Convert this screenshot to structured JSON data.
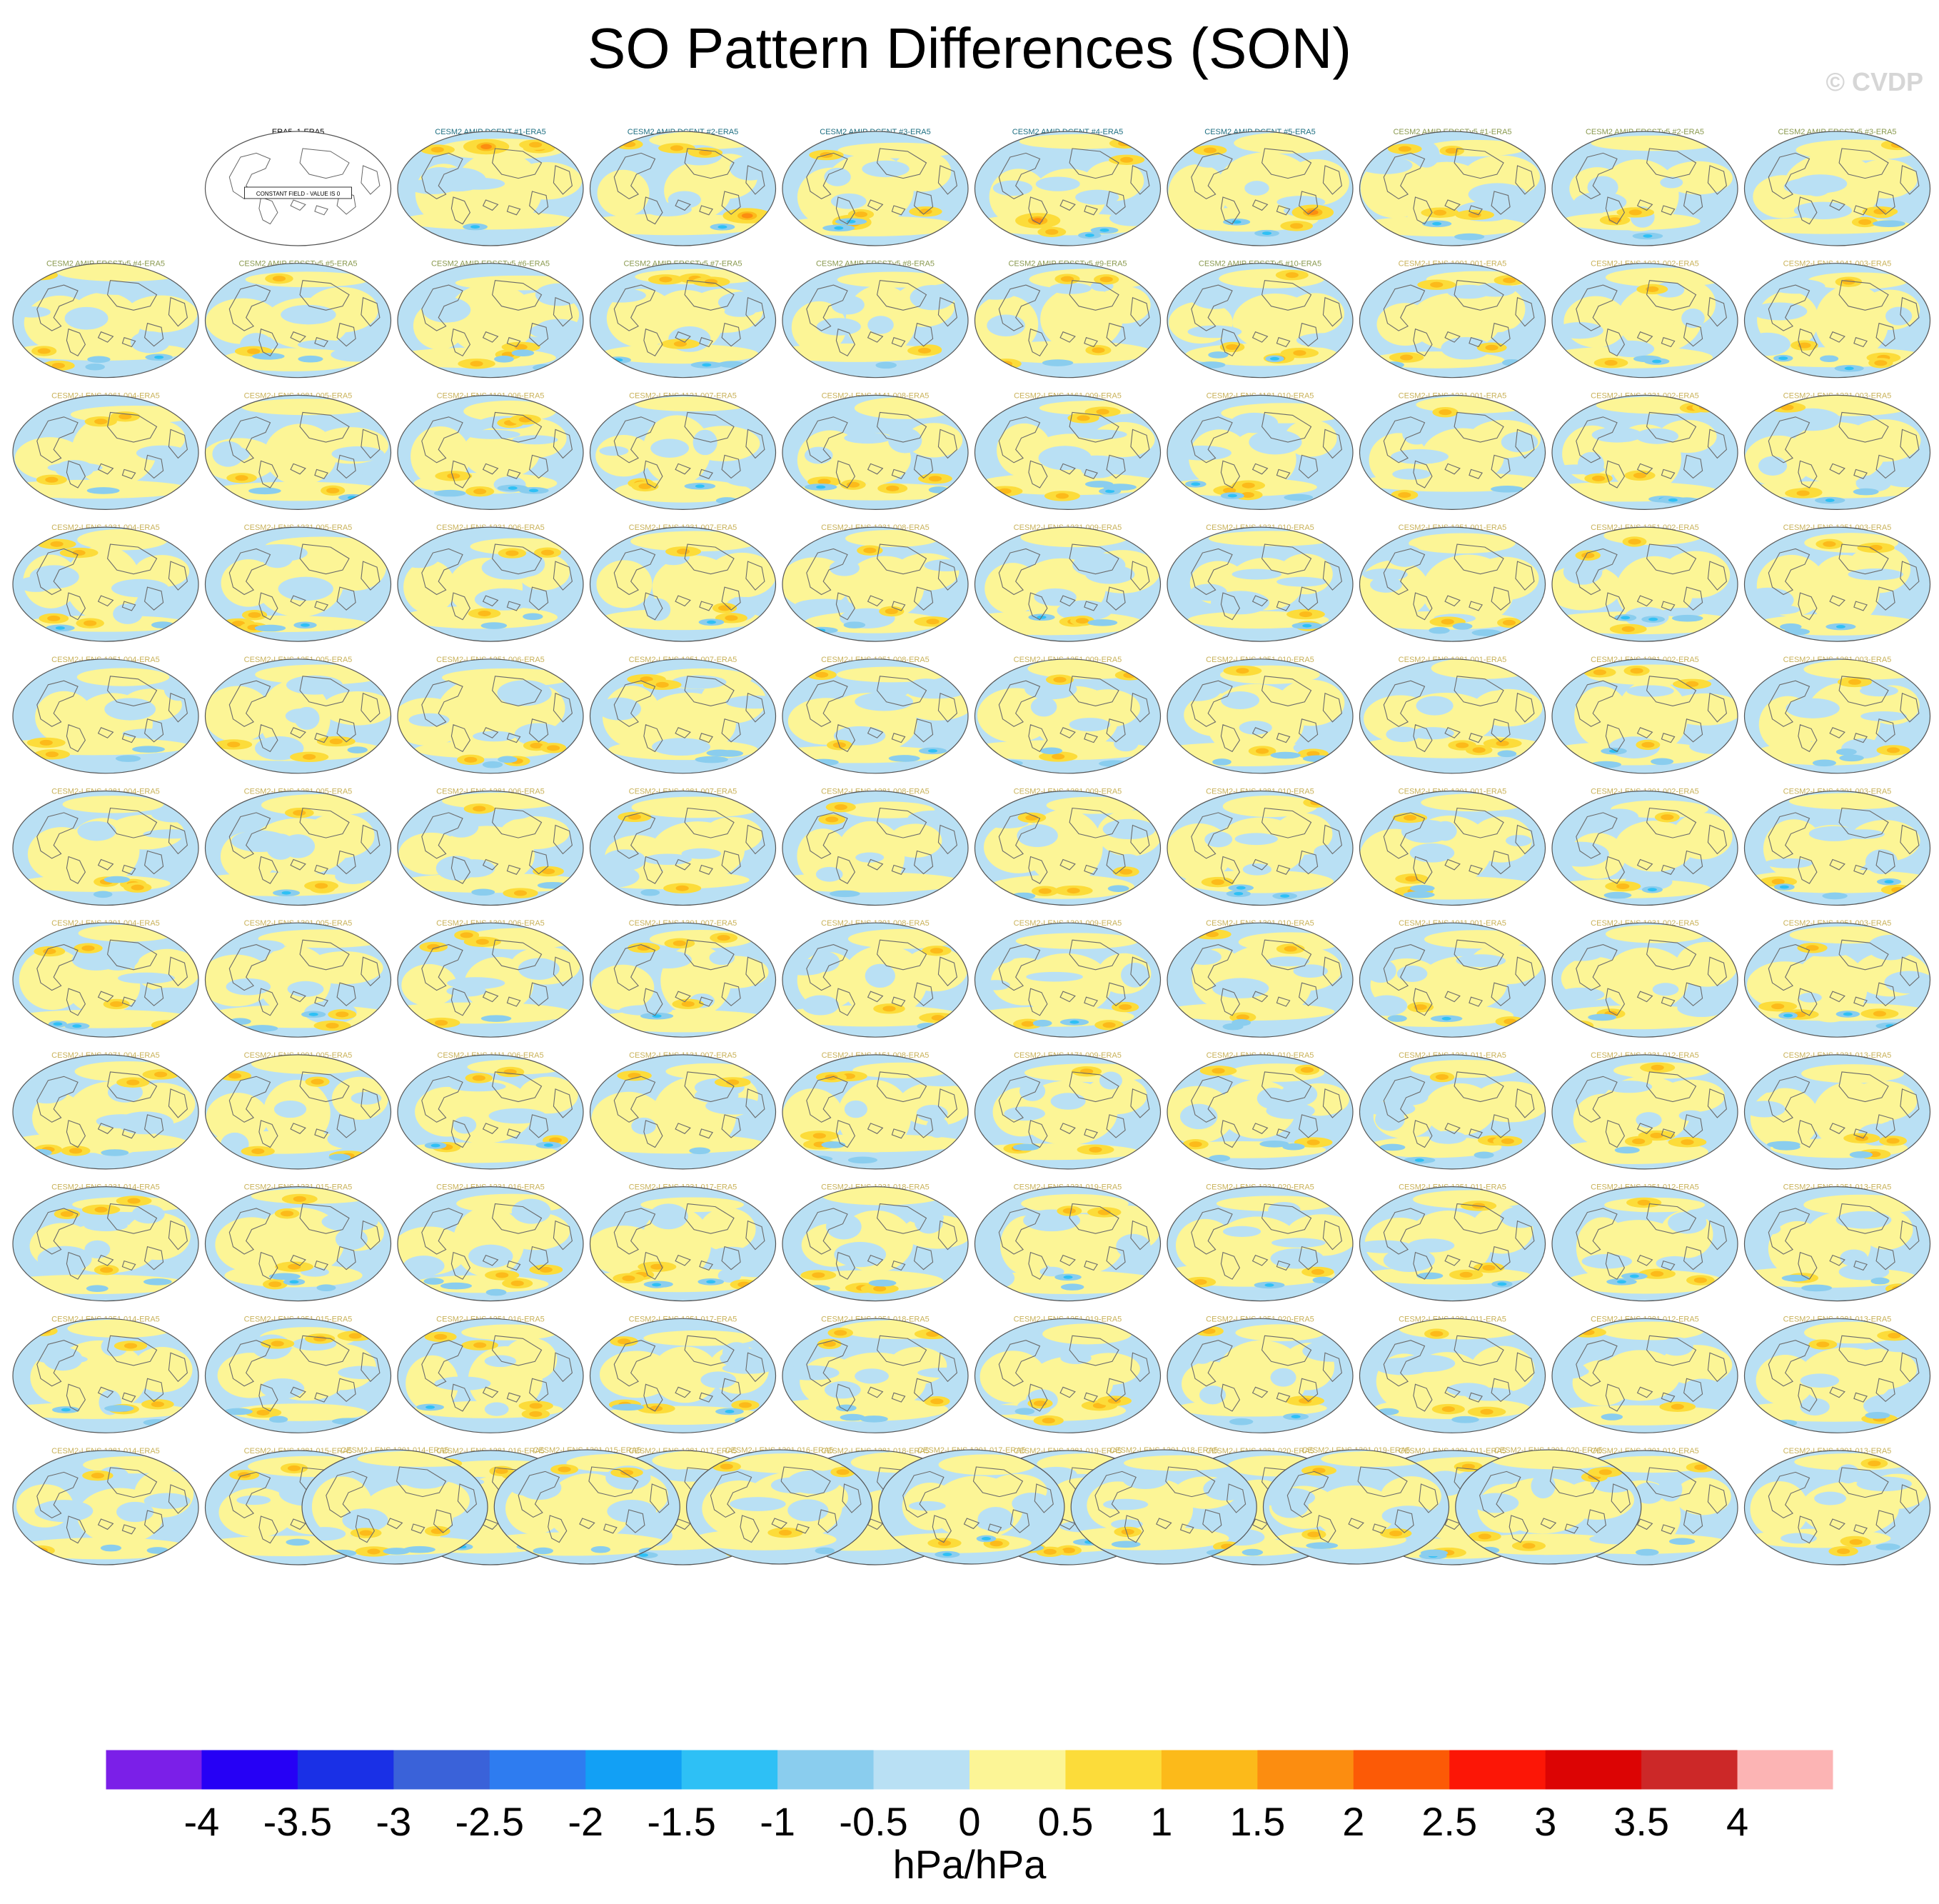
{
  "title": "SO Pattern Differences (SON)",
  "watermark": "© CVDP",
  "units": "hPa/hPa",
  "constant_field_note": "CONSTANT FIELD - VALUE IS 0",
  "chart_data": {
    "type": "heatmap",
    "title": "SO Pattern Differences (SON)",
    "colorbar": {
      "label": "hPa/hPa",
      "tick_labels": [
        "-4",
        "-3.5",
        "-3",
        "-2.5",
        "-2",
        "-1.5",
        "-1",
        "-0.5",
        "0",
        "0.5",
        "1",
        "1.5",
        "2",
        "2.5",
        "3",
        "3.5",
        "4"
      ],
      "colors": [
        "#7b1fe8",
        "#2600f5",
        "#1a30e6",
        "#3a62d9",
        "#2e7cf0",
        "#12a0f5",
        "#2ec0f5",
        "#8acdee",
        "#b9e0f4",
        "#fcf596",
        "#fcdc3a",
        "#fcba1a",
        "#fc8d10",
        "#fc5a06",
        "#fc1606",
        "#dc0404",
        "#cc2828",
        "#fcb4b4"
      ]
    },
    "panels": [
      {
        "label": "ERA5_1-ERA5",
        "group": "obs",
        "constant": true
      },
      {
        "label": "CESM2 AMIP DCENT #1-ERA5",
        "group": "amip"
      },
      {
        "label": "CESM2 AMIP DCENT #2-ERA5",
        "group": "amip"
      },
      {
        "label": "CESM2 AMIP DCENT #3-ERA5",
        "group": "amip"
      },
      {
        "label": "CESM2 AMIP DCENT #4-ERA5",
        "group": "amip"
      },
      {
        "label": "CESM2 AMIP DCENT #5-ERA5",
        "group": "amip"
      },
      {
        "label": "CESM2 AMIP ERSSTv5 #1-ERA5",
        "group": "amip2"
      },
      {
        "label": "CESM2 AMIP ERSSTv5 #2-ERA5",
        "group": "amip2"
      },
      {
        "label": "CESM2 AMIP ERSSTv5 #3-ERA5",
        "group": "amip2"
      },
      {
        "label": "CESM2 AMIP ERSSTv5 #4-ERA5",
        "group": "amip2"
      },
      {
        "label": "CESM2 AMIP ERSSTv5 #5-ERA5",
        "group": "amip2"
      },
      {
        "label": "CESM2 AMIP ERSSTv5 #6-ERA5",
        "group": "amip2"
      },
      {
        "label": "CESM2 AMIP ERSSTv5 #7-ERA5",
        "group": "amip2"
      },
      {
        "label": "CESM2 AMIP ERSSTv5 #8-ERA5",
        "group": "amip2"
      },
      {
        "label": "CESM2 AMIP ERSSTv5 #9-ERA5",
        "group": "amip2"
      },
      {
        "label": "CESM2 AMIP ERSSTv5 #10-ERA5",
        "group": "amip2"
      },
      {
        "label": "CESM2-LENS 1001.001-ERA5",
        "group": "lens"
      },
      {
        "label": "CESM2-LENS 1021.002-ERA5",
        "group": "lens"
      },
      {
        "label": "CESM2-LENS 1041.003-ERA5",
        "group": "lens"
      },
      {
        "label": "CESM2-LENS 1061.004-ERA5",
        "group": "lens"
      },
      {
        "label": "CESM2-LENS 1081.005-ERA5",
        "group": "lens"
      },
      {
        "label": "CESM2-LENS 1101.006-ERA5",
        "group": "lens"
      },
      {
        "label": "CESM2-LENS 1121.007-ERA5",
        "group": "lens"
      },
      {
        "label": "CESM2-LENS 1141.008-ERA5",
        "group": "lens"
      },
      {
        "label": "CESM2-LENS 1161.009-ERA5",
        "group": "lens"
      },
      {
        "label": "CESM2-LENS 1181.010-ERA5",
        "group": "lens"
      },
      {
        "label": "CESM2-LENS 1231.001-ERA5",
        "group": "lens"
      },
      {
        "label": "CESM2-LENS 1231.002-ERA5",
        "group": "lens"
      },
      {
        "label": "CESM2-LENS 1231.003-ERA5",
        "group": "lens"
      },
      {
        "label": "CESM2-LENS 1231.004-ERA5",
        "group": "lens"
      },
      {
        "label": "CESM2-LENS 1231.005-ERA5",
        "group": "lens"
      },
      {
        "label": "CESM2-LENS 1231.006-ERA5",
        "group": "lens"
      },
      {
        "label": "CESM2-LENS 1231.007-ERA5",
        "group": "lens"
      },
      {
        "label": "CESM2-LENS 1231.008-ERA5",
        "group": "lens"
      },
      {
        "label": "CESM2-LENS 1231.009-ERA5",
        "group": "lens"
      },
      {
        "label": "CESM2-LENS 1231.010-ERA5",
        "group": "lens"
      },
      {
        "label": "CESM2-LENS 1251.001-ERA5",
        "group": "lens"
      },
      {
        "label": "CESM2-LENS 1251.002-ERA5",
        "group": "lens"
      },
      {
        "label": "CESM2-LENS 1251.003-ERA5",
        "group": "lens"
      },
      {
        "label": "CESM2-LENS 1251.004-ERA5",
        "group": "lens"
      },
      {
        "label": "CESM2-LENS 1251.005-ERA5",
        "group": "lens"
      },
      {
        "label": "CESM2-LENS 1251.006-ERA5",
        "group": "lens"
      },
      {
        "label": "CESM2-LENS 1251.007-ERA5",
        "group": "lens"
      },
      {
        "label": "CESM2-LENS 1251.008-ERA5",
        "group": "lens"
      },
      {
        "label": "CESM2-LENS 1251.009-ERA5",
        "group": "lens"
      },
      {
        "label": "CESM2-LENS 1251.010-ERA5",
        "group": "lens"
      },
      {
        "label": "CESM2-LENS 1281.001-ERA5",
        "group": "lens"
      },
      {
        "label": "CESM2-LENS 1281.002-ERA5",
        "group": "lens"
      },
      {
        "label": "CESM2-LENS 1281.003-ERA5",
        "group": "lens"
      },
      {
        "label": "CESM2-LENS 1281.004-ERA5",
        "group": "lens"
      },
      {
        "label": "CESM2-LENS 1281.005-ERA5",
        "group": "lens"
      },
      {
        "label": "CESM2-LENS 1281.006-ERA5",
        "group": "lens"
      },
      {
        "label": "CESM2-LENS 1281.007-ERA5",
        "group": "lens"
      },
      {
        "label": "CESM2-LENS 1281.008-ERA5",
        "group": "lens"
      },
      {
        "label": "CESM2-LENS 1281.009-ERA5",
        "group": "lens"
      },
      {
        "label": "CESM2-LENS 1281.010-ERA5",
        "group": "lens"
      },
      {
        "label": "CESM2-LENS 1301.001-ERA5",
        "group": "lens"
      },
      {
        "label": "CESM2-LENS 1301.002-ERA5",
        "group": "lens"
      },
      {
        "label": "CESM2-LENS 1301.003-ERA5",
        "group": "lens"
      },
      {
        "label": "CESM2-LENS 1301.004-ERA5",
        "group": "lens"
      },
      {
        "label": "CESM2-LENS 1301.005-ERA5",
        "group": "lens"
      },
      {
        "label": "CESM2-LENS 1301.006-ERA5",
        "group": "lens"
      },
      {
        "label": "CESM2-LENS 1301.007-ERA5",
        "group": "lens"
      },
      {
        "label": "CESM2-LENS 1301.008-ERA5",
        "group": "lens"
      },
      {
        "label": "CESM2-LENS 1301.009-ERA5",
        "group": "lens"
      },
      {
        "label": "CESM2-LENS 1301.010-ERA5",
        "group": "lens"
      },
      {
        "label": "CESM2-LENS 1011.001-ERA5",
        "group": "lens"
      },
      {
        "label": "CESM2-LENS 1031.002-ERA5",
        "group": "lens"
      },
      {
        "label": "CESM2-LENS 1051.003-ERA5",
        "group": "lens"
      },
      {
        "label": "CESM2-LENS 1071.004-ERA5",
        "group": "lens"
      },
      {
        "label": "CESM2-LENS 1091.005-ERA5",
        "group": "lens"
      },
      {
        "label": "CESM2-LENS 1111.006-ERA5",
        "group": "lens"
      },
      {
        "label": "CESM2-LENS 1131.007-ERA5",
        "group": "lens"
      },
      {
        "label": "CESM2-LENS 1151.008-ERA5",
        "group": "lens"
      },
      {
        "label": "CESM2-LENS 1171.009-ERA5",
        "group": "lens"
      },
      {
        "label": "CESM2-LENS 1191.010-ERA5",
        "group": "lens"
      },
      {
        "label": "CESM2-LENS 1231.011-ERA5",
        "group": "lens"
      },
      {
        "label": "CESM2-LENS 1231.012-ERA5",
        "group": "lens"
      },
      {
        "label": "CESM2-LENS 1231.013-ERA5",
        "group": "lens"
      },
      {
        "label": "CESM2-LENS 1231.014-ERA5",
        "group": "lens"
      },
      {
        "label": "CESM2-LENS 1231.015-ERA5",
        "group": "lens"
      },
      {
        "label": "CESM2-LENS 1231.016-ERA5",
        "group": "lens"
      },
      {
        "label": "CESM2-LENS 1231.017-ERA5",
        "group": "lens"
      },
      {
        "label": "CESM2-LENS 1231.018-ERA5",
        "group": "lens"
      },
      {
        "label": "CESM2-LENS 1231.019-ERA5",
        "group": "lens"
      },
      {
        "label": "CESM2-LENS 1231.020-ERA5",
        "group": "lens"
      },
      {
        "label": "CESM2-LENS 1251.011-ERA5",
        "group": "lens"
      },
      {
        "label": "CESM2-LENS 1251.012-ERA5",
        "group": "lens"
      },
      {
        "label": "CESM2-LENS 1251.013-ERA5",
        "group": "lens"
      },
      {
        "label": "CESM2-LENS 1251.014-ERA5",
        "group": "lens"
      },
      {
        "label": "CESM2-LENS 1251.015-ERA5",
        "group": "lens"
      },
      {
        "label": "CESM2-LENS 1251.016-ERA5",
        "group": "lens"
      },
      {
        "label": "CESM2-LENS 1251.017-ERA5",
        "group": "lens"
      },
      {
        "label": "CESM2-LENS 1251.018-ERA5",
        "group": "lens"
      },
      {
        "label": "CESM2-LENS 1251.019-ERA5",
        "group": "lens"
      },
      {
        "label": "CESM2-LENS 1251.020-ERA5",
        "group": "lens"
      },
      {
        "label": "CESM2-LENS 1281.011-ERA5",
        "group": "lens"
      },
      {
        "label": "CESM2-LENS 1281.012-ERA5",
        "group": "lens"
      },
      {
        "label": "CESM2-LENS 1281.013-ERA5",
        "group": "lens"
      },
      {
        "label": "CESM2-LENS 1281.014-ERA5",
        "group": "lens"
      },
      {
        "label": "CESM2-LENS 1281.015-ERA5",
        "group": "lens"
      },
      {
        "label": "CESM2-LENS 1281.016-ERA5",
        "group": "lens"
      },
      {
        "label": "CESM2-LENS 1281.017-ERA5",
        "group": "lens"
      },
      {
        "label": "CESM2-LENS 1281.018-ERA5",
        "group": "lens"
      },
      {
        "label": "CESM2-LENS 1281.019-ERA5",
        "group": "lens"
      },
      {
        "label": "CESM2-LENS 1281.020-ERA5",
        "group": "lens"
      },
      {
        "label": "CESM2-LENS 1301.011-ERA5",
        "group": "lens"
      },
      {
        "label": "CESM2-LENS 1301.012-ERA5",
        "group": "lens"
      },
      {
        "label": "CESM2-LENS 1301.013-ERA5",
        "group": "lens"
      },
      {
        "label": "CESM2-LENS 1301.014-ERA5",
        "group": "lens"
      },
      {
        "label": "CESM2-LENS 1301.015-ERA5",
        "group": "lens"
      },
      {
        "label": "CESM2-LENS 1301.016-ERA5",
        "group": "lens"
      },
      {
        "label": "CESM2-LENS 1301.017-ERA5",
        "group": "lens"
      },
      {
        "label": "CESM2-LENS 1301.018-ERA5",
        "group": "lens"
      },
      {
        "label": "CESM2-LENS 1301.019-ERA5",
        "group": "lens"
      },
      {
        "label": "CESM2-LENS 1301.020-ERA5",
        "group": "lens"
      }
    ],
    "label_colors": {
      "obs": "#000000",
      "amip": "#1f6f82",
      "amip2": "#8a9a50",
      "lens": "#c9b25a"
    }
  }
}
